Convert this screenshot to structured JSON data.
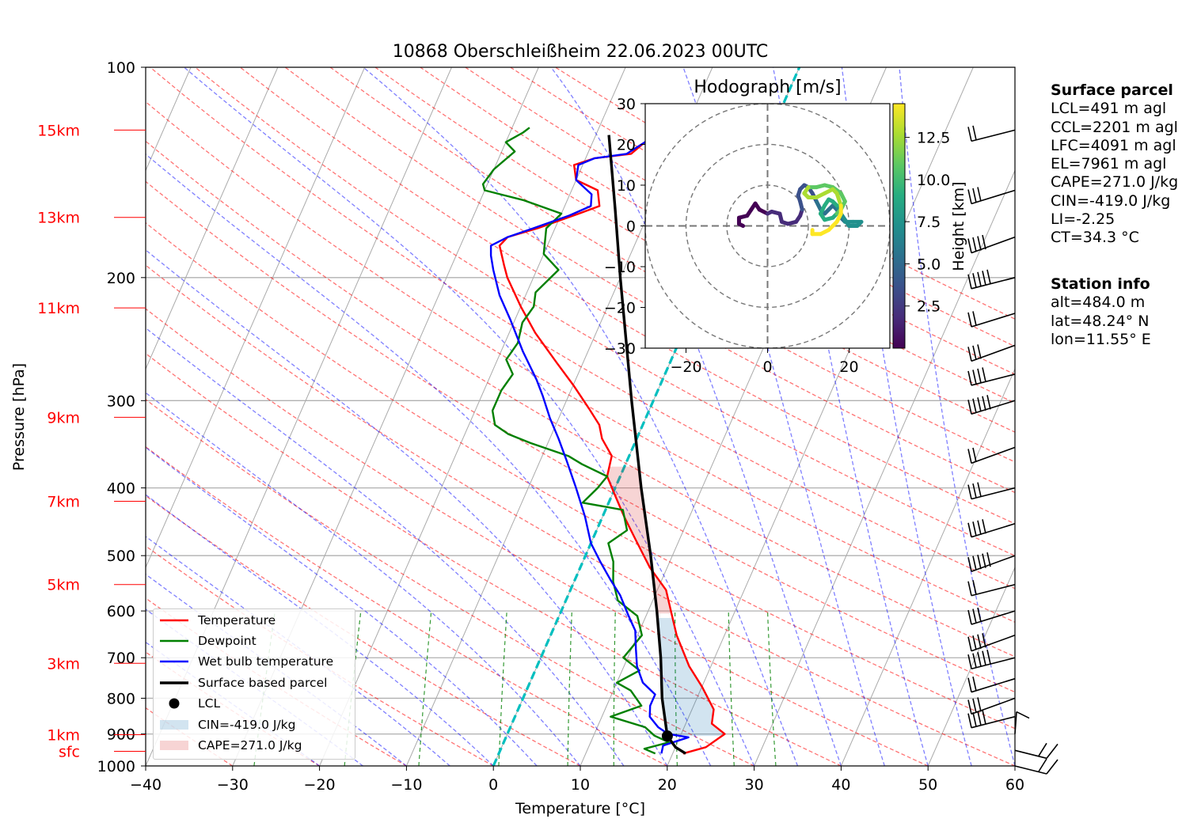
{
  "chart_data": {
    "type": "line",
    "title": "10868 Oberschleißheim 22.06.2023 00UTC",
    "xlabel": "Temperature [°C]",
    "ylabel": "Pressure [hPa]",
    "xlim": [
      -40,
      60
    ],
    "ylim": [
      1000,
      100
    ],
    "y_scale": "log",
    "x_ticks": [
      -40,
      -30,
      -20,
      -10,
      0,
      10,
      20,
      30,
      40,
      50,
      60
    ],
    "x_tick_labels": [
      "−40",
      "−30",
      "−20",
      "−10",
      "0",
      "10",
      "20",
      "30",
      "40",
      "50",
      "60"
    ],
    "y_ticks": [
      100,
      200,
      300,
      400,
      500,
      600,
      700,
      800,
      900,
      1000
    ],
    "y_tick_labels": [
      "100",
      "200",
      "300",
      "400",
      "500",
      "600",
      "700",
      "800",
      "900",
      "1000"
    ],
    "height_labels": [
      {
        "label": "15km",
        "p": 123
      },
      {
        "label": "13km",
        "p": 164
      },
      {
        "label": "11km",
        "p": 221
      },
      {
        "label": "9km",
        "p": 317
      },
      {
        "label": "7km",
        "p": 418
      },
      {
        "label": "5km",
        "p": 550
      },
      {
        "label": "3km",
        "p": 713
      },
      {
        "label": "1km",
        "p": 902
      },
      {
        "label": "sfc",
        "p": 953
      }
    ],
    "series": [
      {
        "name": "Temperature",
        "color": "#ff0000",
        "points": [
          [
            21.2,
            960
          ],
          [
            23.5,
            940
          ],
          [
            25.0,
            900
          ],
          [
            23.0,
            870
          ],
          [
            22.5,
            830
          ],
          [
            20.0,
            770
          ],
          [
            17.5,
            720
          ],
          [
            14.5,
            650
          ],
          [
            13.0,
            610
          ],
          [
            11.0,
            560
          ],
          [
            8.0,
            520
          ],
          [
            5.0,
            475
          ],
          [
            2.5,
            440
          ],
          [
            0.0,
            405
          ],
          [
            -1.5,
            385
          ],
          [
            -2.0,
            360
          ],
          [
            -4.0,
            340
          ],
          [
            -5.0,
            325
          ],
          [
            -7.0,
            308
          ],
          [
            -10.0,
            285
          ],
          [
            -13.0,
            265
          ],
          [
            -17.0,
            240
          ],
          [
            -20.0,
            220
          ],
          [
            -23.0,
            200
          ],
          [
            -24.0,
            192
          ],
          [
            -25.5,
            180
          ],
          [
            -25.0,
            175
          ],
          [
            -22.0,
            170
          ],
          [
            -18.0,
            162
          ],
          [
            -16.0,
            158
          ],
          [
            -17.0,
            150
          ],
          [
            -20.0,
            145
          ],
          [
            -21.0,
            138
          ],
          [
            -19.0,
            135
          ],
          [
            -15.0,
            133
          ],
          [
            -14.0,
            128
          ],
          [
            -12.5,
            127
          ],
          [
            -12.0,
            123
          ]
        ]
      },
      {
        "name": "Dewpoint",
        "color": "#008000",
        "points": [
          [
            18.0,
            960
          ],
          [
            16.5,
            945
          ],
          [
            19.0,
            925
          ],
          [
            17.0,
            905
          ],
          [
            15.5,
            880
          ],
          [
            11.0,
            850
          ],
          [
            14.0,
            820
          ],
          [
            12.0,
            780
          ],
          [
            10.0,
            760
          ],
          [
            12.0,
            730
          ],
          [
            9.5,
            700
          ],
          [
            10.5,
            650
          ],
          [
            9.0,
            610
          ],
          [
            6.0,
            580
          ],
          [
            4.5,
            545
          ],
          [
            3.5,
            510
          ],
          [
            2.0,
            480
          ],
          [
            3.5,
            460
          ],
          [
            2.0,
            430
          ],
          [
            -3.0,
            420
          ],
          [
            -2.0,
            400
          ],
          [
            -1.5,
            385
          ],
          [
            -5.0,
            370
          ],
          [
            -7.0,
            360
          ],
          [
            -12.0,
            345
          ],
          [
            -15.0,
            335
          ],
          [
            -17.0,
            325
          ],
          [
            -18.0,
            310
          ],
          [
            -18.0,
            290
          ],
          [
            -17.5,
            275
          ],
          [
            -19.0,
            262
          ],
          [
            -18.5,
            248
          ],
          [
            -19.0,
            232
          ],
          [
            -18.5,
            220
          ],
          [
            -19.0,
            210
          ],
          [
            -17.5,
            195
          ],
          [
            -20.0,
            185
          ],
          [
            -21.0,
            170
          ],
          [
            -20.0,
            162
          ],
          [
            -25.0,
            155
          ],
          [
            -30.0,
            150
          ],
          [
            -30.5,
            147
          ],
          [
            -30.0,
            140
          ],
          [
            -28.5,
            132
          ],
          [
            -30.0,
            128
          ],
          [
            -28.5,
            124
          ],
          [
            -28.0,
            122
          ]
        ]
      },
      {
        "name": "Wet bulb temperature",
        "color": "#0000ff",
        "points": [
          [
            18.7,
            960
          ],
          [
            18.5,
            935
          ],
          [
            21.0,
            910
          ],
          [
            18.5,
            900
          ],
          [
            17.0,
            880
          ],
          [
            15.5,
            850
          ],
          [
            15.0,
            820
          ],
          [
            15.0,
            790
          ],
          [
            13.0,
            760
          ],
          [
            11.5,
            720
          ],
          [
            10.5,
            680
          ],
          [
            9.5,
            640
          ],
          [
            8.0,
            610
          ],
          [
            6.0,
            570
          ],
          [
            4.0,
            540
          ],
          [
            2.0,
            510
          ],
          [
            0.0,
            480
          ],
          [
            -2.0,
            440
          ],
          [
            -4.5,
            400
          ],
          [
            -7.0,
            365
          ],
          [
            -9.0,
            340
          ],
          [
            -11.0,
            318
          ],
          [
            -13.0,
            295
          ],
          [
            -14.5,
            280
          ],
          [
            -17.5,
            255
          ],
          [
            -20.5,
            230
          ],
          [
            -23.0,
            212
          ],
          [
            -25.0,
            195
          ],
          [
            -26.0,
            186
          ],
          [
            -26.5,
            180
          ],
          [
            -25.0,
            175
          ],
          [
            -22.5,
            170
          ],
          [
            -19.0,
            163
          ],
          [
            -17.0,
            158
          ],
          [
            -17.5,
            152
          ],
          [
            -20.0,
            145
          ],
          [
            -20.5,
            138
          ],
          [
            -19.0,
            135
          ],
          [
            -15.5,
            133
          ],
          [
            -14.0,
            128
          ],
          [
            -13.0,
            127
          ],
          [
            -12.5,
            123
          ]
        ]
      },
      {
        "name": "Surface based parcel",
        "color": "#000000",
        "points": [
          [
            21.5,
            960
          ],
          [
            20.0,
            940
          ],
          [
            18.5,
            906
          ],
          [
            16.0,
            800
          ],
          [
            13.8,
            700
          ],
          [
            11.0,
            600
          ],
          [
            7.5,
            500
          ],
          [
            3.0,
            400
          ],
          [
            -2.5,
            300
          ],
          [
            -10.0,
            200
          ],
          [
            -14.0,
            160
          ],
          [
            -18.5,
            125
          ]
        ]
      }
    ],
    "lcl": {
      "t": 18.5,
      "p": 906
    },
    "cin": {
      "label": "CIN=-419.0 J/kg",
      "color": "#1f77b4"
    },
    "cape": {
      "label": "CAPE=271.0 J/kg",
      "color": "#d62728"
    },
    "legend": {
      "location": "lower-left",
      "items": [
        "Temperature",
        "Dewpoint",
        "Wet bulb temperature",
        "Surface based parcel",
        "LCL",
        "CIN=-419.0 J/kg",
        "CAPE=271.0 J/kg"
      ]
    },
    "wind_pressures": [
      123,
      150,
      175,
      200,
      225,
      250,
      275,
      300,
      350,
      400,
      450,
      500,
      550,
      600,
      650,
      700,
      750,
      800,
      850,
      900,
      950,
      1000
    ]
  },
  "hodograph": {
    "title": "Hodograph [m/s]",
    "xlim": [
      -30,
      30
    ],
    "ylim": [
      -30,
      30
    ],
    "x_ticks": [
      -20,
      0,
      20
    ],
    "x_tick_labels": [
      "−20",
      "0",
      "20"
    ],
    "y_ticks": [
      -30,
      -20,
      -10,
      0,
      10,
      20,
      30
    ],
    "y_tick_labels": [
      "−30",
      "−20",
      "−10",
      "0",
      "10",
      "20",
      "30"
    ],
    "rings": [
      10,
      20,
      30
    ],
    "colorbar": {
      "label": "Height [km]",
      "range": [
        0,
        14.5
      ],
      "ticks": [
        2.5,
        5.0,
        7.5,
        10.0,
        12.5
      ],
      "tick_labels": [
        "2.5",
        "5.0",
        "7.5",
        "10.0",
        "12.5"
      ]
    },
    "trace": [
      [
        -6,
        0
      ],
      [
        -7,
        0.5
      ],
      [
        -7,
        2
      ],
      [
        -5,
        2.5
      ],
      [
        -4,
        4
      ],
      [
        -3,
        5.5
      ],
      [
        -2,
        4
      ],
      [
        0,
        3
      ],
      [
        1,
        3.5
      ],
      [
        3,
        3
      ],
      [
        3.5,
        1
      ],
      [
        5,
        0.5
      ],
      [
        7,
        1
      ],
      [
        8,
        2.5
      ],
      [
        8.5,
        4
      ],
      [
        8,
        6
      ],
      [
        7.5,
        7.5
      ],
      [
        8,
        9
      ],
      [
        9,
        10
      ],
      [
        10,
        9.5
      ],
      [
        11,
        8
      ],
      [
        12,
        6
      ],
      [
        13,
        4
      ],
      [
        14,
        3
      ],
      [
        15,
        4
      ],
      [
        16,
        5
      ],
      [
        17,
        4
      ],
      [
        18,
        2
      ],
      [
        19,
        1
      ],
      [
        21,
        1
      ],
      [
        23,
        1
      ],
      [
        22,
        0
      ],
      [
        20,
        0
      ],
      [
        19,
        1.5
      ],
      [
        18,
        3
      ],
      [
        17,
        5
      ],
      [
        16,
        6
      ],
      [
        15,
        6.5
      ],
      [
        14,
        5
      ],
      [
        13,
        3
      ],
      [
        14,
        1.5
      ],
      [
        16,
        2
      ],
      [
        17,
        3
      ],
      [
        18,
        4
      ],
      [
        19,
        6
      ],
      [
        18,
        8
      ],
      [
        16,
        9.5
      ],
      [
        14,
        10
      ],
      [
        12,
        9.5
      ],
      [
        10,
        9.5
      ],
      [
        9,
        8
      ],
      [
        10,
        7
      ],
      [
        12,
        7
      ],
      [
        14,
        8
      ],
      [
        16,
        9
      ],
      [
        17,
        8
      ],
      [
        18,
        5
      ],
      [
        18,
        3
      ],
      [
        17,
        1
      ],
      [
        15,
        -1
      ],
      [
        13,
        -2
      ],
      [
        11,
        -2
      ],
      [
        11,
        -1
      ]
    ]
  },
  "surface_parcel": {
    "title": "Surface parcel",
    "lines": [
      "LCL=491 m agl",
      "CCL=2201 m agl",
      "LFC=4091 m agl",
      "EL=7961 m agl",
      "CAPE=271.0 J/kg",
      "CIN=-419.0 J/kg",
      "LI=-2.25",
      "CT=34.3 °C"
    ]
  },
  "station_info": {
    "title": "Station info",
    "lines": [
      "alt=484.0 m",
      "lat=48.24° N",
      "lon=11.55° E"
    ]
  }
}
